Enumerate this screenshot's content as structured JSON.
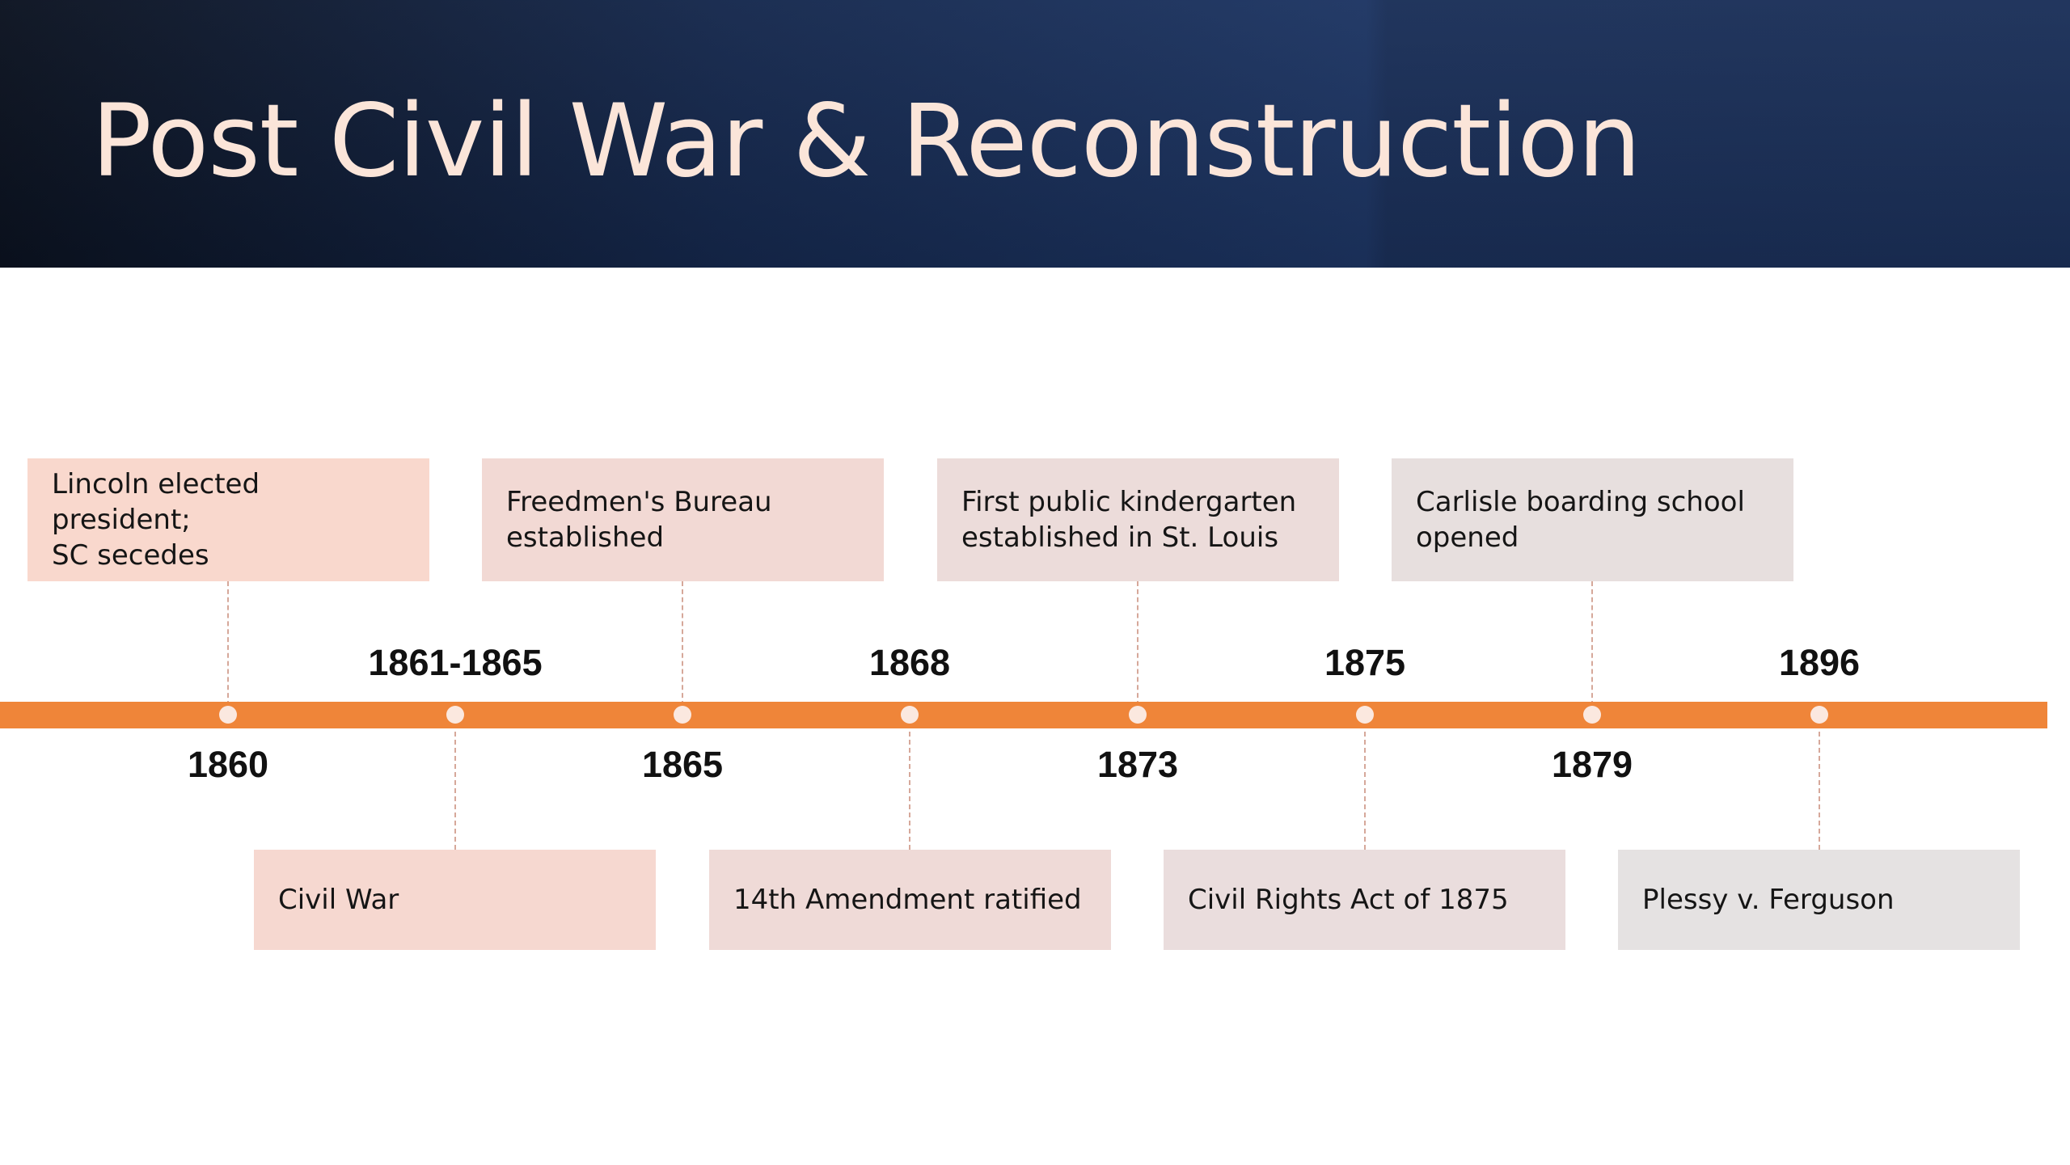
{
  "slide": {
    "title": "Post Civil War & Reconstruction"
  },
  "colors": {
    "header_dark": "#0b1220",
    "header_blue": "#1d3563",
    "title_text": "#fbe5d9",
    "axis": "#ef8539",
    "marker": "#fbe8df"
  },
  "timeline": {
    "above_labels": [
      "1861-1865",
      "1868",
      "1875",
      "1896"
    ],
    "below_labels": [
      "1860",
      "1865",
      "1873",
      "1879"
    ],
    "top_events": [
      {
        "text": "Lincoln elected president;\nSC secedes",
        "color": "#f9d8cd"
      },
      {
        "text": "Freedmen's Bureau\nestablished",
        "color": "#f2d9d4"
      },
      {
        "text": "First public kindergarten\nestablished in St. Louis",
        "color": "#ecdcda"
      },
      {
        "text": "Carlisle boarding school\nopened",
        "color": "#e7dfde"
      }
    ],
    "bottom_events": [
      {
        "text": "Civil War",
        "color": "#f6d8d0"
      },
      {
        "text": "14th Amendment ratified",
        "color": "#efdad7"
      },
      {
        "text": "Civil Rights Act of 1875",
        "color": "#eadddd"
      },
      {
        "text": "Plessy v. Ferguson",
        "color": "#e5e2e2"
      }
    ]
  }
}
